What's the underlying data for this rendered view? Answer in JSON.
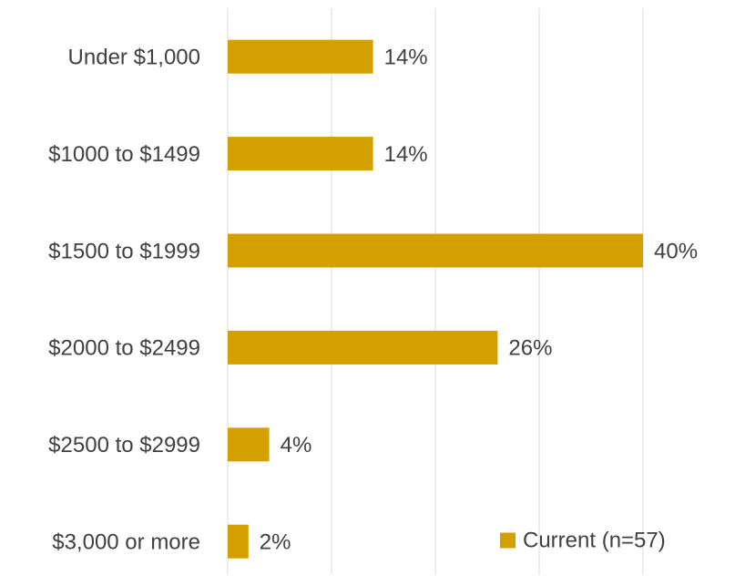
{
  "chart_data": {
    "type": "bar",
    "orientation": "horizontal",
    "categories": [
      "Under $1,000",
      "$1000 to $1499",
      "$1500 to $1999",
      "$2000 to $2499",
      "$2500 to $2999",
      "$3,000 or more"
    ],
    "series": [
      {
        "name": "Current (n=57)",
        "color": "#d4a000",
        "values": [
          14,
          14,
          40,
          26,
          4,
          2
        ],
        "value_labels": [
          "14%",
          "14%",
          "40%",
          "26%",
          "4%",
          "2%"
        ]
      }
    ],
    "xlim": [
      0,
      40
    ],
    "xticks": [
      0,
      10,
      20,
      30,
      40
    ],
    "grid": true,
    "legend": "lower right"
  }
}
